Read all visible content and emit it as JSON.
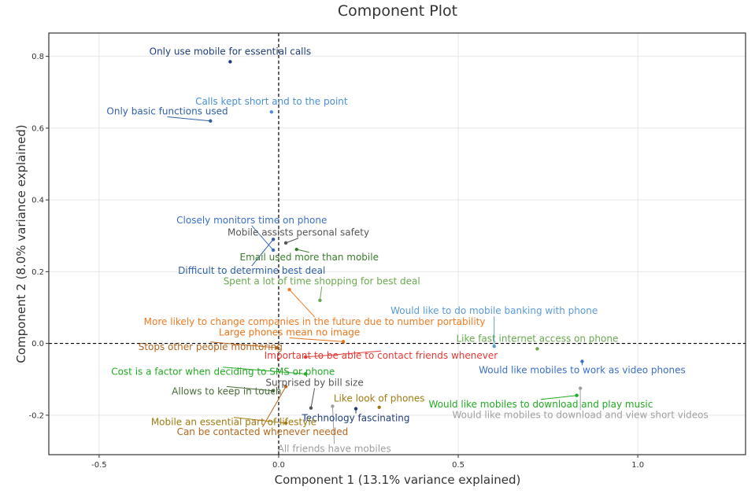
{
  "chart_data": {
    "type": "scatter",
    "title": "Component Plot",
    "xlabel": "Component 1 (13.1% variance explained)",
    "ylabel": "Component 2 (8.0% variance explained)",
    "xlim": [
      -0.64,
      1.3
    ],
    "ylim": [
      -0.31,
      0.865
    ],
    "xticks": [
      -0.5,
      0.0,
      0.5,
      1.0
    ],
    "yticks": [
      -0.2,
      0.0,
      0.2,
      0.4,
      0.6,
      0.8
    ],
    "xtick_labels": [
      "-0.5",
      "0.0",
      "0.5",
      "1.0"
    ],
    "ytick_labels": [
      "-0.2",
      "0.0",
      "0.2",
      "0.4",
      "0.6",
      "0.8"
    ],
    "grid": true,
    "reference_lines": {
      "x": 0,
      "y": 0
    },
    "points": [
      {
        "label": "Only use mobile for essential calls",
        "x": -0.135,
        "y": 0.785,
        "lx": -0.135,
        "ly": 0.805,
        "color": "#1f3d7a"
      },
      {
        "label": "Calls kept short and to the point",
        "x": -0.02,
        "y": 0.645,
        "lx": -0.02,
        "ly": 0.665,
        "color": "#4a90d9"
      },
      {
        "label": "Only basic functions used",
        "x": -0.19,
        "y": 0.62,
        "lx": -0.31,
        "ly": 0.638,
        "color": "#2e5fa8"
      },
      {
        "label": "Closely monitors time on phone",
        "x": -0.015,
        "y": 0.26,
        "lx": -0.075,
        "ly": 0.335,
        "color": "#3b6fc9"
      },
      {
        "label": "Mobile assists personal safety",
        "x": 0.02,
        "y": 0.28,
        "lx": 0.055,
        "ly": 0.3,
        "color": "#555555"
      },
      {
        "label": "Email used more than mobile",
        "x": 0.05,
        "y": 0.262,
        "lx": 0.085,
        "ly": 0.232,
        "color": "#3a7d2c"
      },
      {
        "label": "Difficult to determine best deal",
        "x": -0.015,
        "y": 0.29,
        "lx": -0.075,
        "ly": 0.194,
        "color": "#2e5fa8"
      },
      {
        "label": "Spent a lot of time shopping for best deal",
        "x": 0.115,
        "y": 0.12,
        "lx": 0.12,
        "ly": 0.165,
        "color": "#6aa84f"
      },
      {
        "label": "More likely to change companies in the future due to number portability",
        "x": 0.03,
        "y": 0.15,
        "lx": 0.1,
        "ly": 0.052,
        "color": "#f07b24"
      },
      {
        "label": "Large phones mean no image",
        "x": 0.18,
        "y": 0.005,
        "lx": 0.03,
        "ly": 0.022,
        "color": "#e8741b"
      },
      {
        "label": "Stops other people monitoring",
        "x": -0.005,
        "y": -0.012,
        "lx": -0.19,
        "ly": -0.018,
        "color": "#b5651d"
      },
      {
        "label": "Important to be able to contact friends whenever",
        "x": 0.075,
        "y": -0.038,
        "lx": 0.285,
        "ly": -0.043,
        "color": "#e53935"
      },
      {
        "label": "Cost is a factor when deciding to SMS or phone",
        "x": 0.075,
        "y": -0.085,
        "lx": -0.155,
        "ly": -0.088,
        "color": "#22aa22"
      },
      {
        "label": "Allows to keep in touch",
        "x": -0.015,
        "y": -0.132,
        "lx": -0.145,
        "ly": -0.142,
        "color": "#4a6b3a"
      },
      {
        "label": "Surprised by bill size",
        "x": 0.09,
        "y": -0.18,
        "lx": 0.1,
        "ly": -0.118,
        "color": "#555555"
      },
      {
        "label": "Like look of phones",
        "x": 0.28,
        "y": -0.178,
        "lx": 0.28,
        "ly": -0.162,
        "color": "#a07a10"
      },
      {
        "label": "Technology fascinating",
        "x": 0.215,
        "y": -0.182,
        "lx": 0.215,
        "ly": -0.217,
        "color": "#1f3d7a"
      },
      {
        "label": "Mobile an essential part of lifestyle",
        "x": 0.02,
        "y": -0.222,
        "lx": -0.125,
        "ly": -0.228,
        "color": "#a07a10"
      },
      {
        "label": "Can be contacted whenever needed",
        "x": 0.02,
        "y": -0.12,
        "lx": -0.045,
        "ly": -0.255,
        "color": "#b5651d"
      },
      {
        "label": "All friends have mobiles",
        "x": 0.15,
        "y": -0.175,
        "lx": 0.155,
        "ly": -0.302,
        "color": "#9e9e9e"
      },
      {
        "label": "Would like to do mobile banking with phone",
        "x": 0.6,
        "y": -0.008,
        "lx": 0.6,
        "ly": 0.082,
        "color": "#5b9bd5"
      },
      {
        "label": "Like fast internet access on phone",
        "x": 0.72,
        "y": -0.015,
        "lx": 0.72,
        "ly": 0.005,
        "color": "#6aa84f"
      },
      {
        "label": "Would like mobiles to work as video phones",
        "x": 0.845,
        "y": -0.05,
        "lx": 0.845,
        "ly": -0.083,
        "color": "#3b6fc9"
      },
      {
        "label": "Would like mobiles to download and play music",
        "x": 0.83,
        "y": -0.145,
        "lx": 0.73,
        "ly": -0.178,
        "color": "#22aa22"
      },
      {
        "label": "Would like mobiles to download and view short videos",
        "x": 0.84,
        "y": -0.125,
        "lx": 0.84,
        "ly": -0.208,
        "color": "#a0a0a0"
      }
    ]
  }
}
